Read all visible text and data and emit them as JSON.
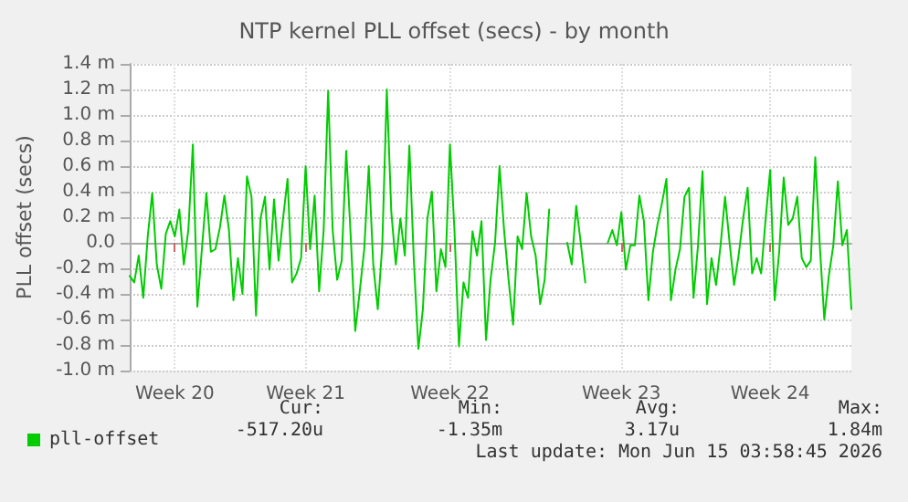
{
  "chart_data": {
    "type": "line",
    "title": "NTP kernel PLL offset (secs) - by month",
    "ylabel": "PLL offset (secs)",
    "categories": [
      null,
      null,
      null,
      null,
      null,
      null,
      null,
      null,
      null,
      null,
      "Week 20",
      null,
      null,
      null,
      null,
      null,
      null,
      null,
      null,
      null,
      null,
      null,
      null,
      null,
      null,
      null,
      null,
      null,
      null,
      null,
      null,
      null,
      null,
      null,
      null,
      null,
      null,
      null,
      null,
      "Week 21",
      null,
      null,
      null,
      null,
      null,
      null,
      null,
      null,
      null,
      null,
      null,
      null,
      null,
      null,
      null,
      null,
      null,
      null,
      null,
      null,
      null,
      null,
      null,
      null,
      null,
      null,
      null,
      null,
      null,
      null,
      null,
      "Week 22",
      null,
      null,
      null,
      null,
      null,
      null,
      null,
      null,
      null,
      null,
      null,
      null,
      null,
      null,
      null,
      null,
      null,
      null,
      null,
      null,
      null,
      null,
      null,
      null,
      null,
      null,
      null,
      null,
      null,
      null,
      null,
      null,
      null,
      null,
      null,
      null,
      null,
      "Week 23",
      null,
      null,
      null,
      null,
      null,
      null,
      null,
      null,
      null,
      null,
      null,
      null,
      null,
      null,
      null,
      null,
      null,
      null,
      null,
      null,
      null,
      null,
      null,
      null,
      null,
      null,
      null,
      null,
      null,
      null,
      null,
      null,
      "Week 24",
      null,
      null,
      null,
      null,
      null,
      null,
      null,
      null,
      null,
      null,
      null,
      null,
      null,
      null,
      null,
      null,
      null,
      null
    ],
    "series": [
      {
        "name": "pll-offset",
        "color": "#00cc00",
        "values": [
          -0.26,
          -0.31,
          -0.1,
          -0.43,
          0.05,
          0.39,
          -0.17,
          -0.36,
          0.07,
          0.17,
          0.05,
          0.26,
          -0.17,
          0.1,
          0.77,
          -0.5,
          -0.05,
          0.39,
          -0.07,
          -0.05,
          0.12,
          0.37,
          0.1,
          -0.45,
          -0.12,
          -0.4,
          0.52,
          0.36,
          -0.57,
          0.19,
          0.36,
          -0.21,
          0.34,
          -0.14,
          0.19,
          0.5,
          -0.31,
          -0.24,
          -0.12,
          0.6,
          -0.05,
          0.37,
          -0.38,
          0.1,
          1.19,
          0.1,
          -0.29,
          -0.14,
          0.72,
          0.05,
          -0.69,
          -0.38,
          -0.05,
          0.6,
          -0.17,
          -0.52,
          -0.02,
          1.2,
          0.24,
          -0.17,
          0.19,
          -0.1,
          0.76,
          -0.14,
          -0.83,
          -0.52,
          0.19,
          0.4,
          -0.38,
          -0.05,
          -0.19,
          0.77,
          0.1,
          -0.81,
          -0.31,
          -0.43,
          0.09,
          -0.1,
          0.17,
          -0.76,
          -0.29,
          0,
          0.6,
          0.1,
          -0.29,
          -0.64,
          0.05,
          -0.05,
          0.39,
          0.05,
          -0.1,
          -0.48,
          -0.29,
          0.26,
          null,
          null,
          null,
          0,
          -0.17,
          0.29,
          0,
          -0.31,
          null,
          null,
          null,
          null,
          0,
          0.1,
          -0.02,
          0.24,
          -0.21,
          -0.02,
          -0.02,
          0.37,
          0.17,
          -0.45,
          -0.07,
          0.14,
          0.31,
          0.5,
          -0.45,
          -0.21,
          -0.05,
          0.36,
          0.43,
          -0.43,
          -0.02,
          0.56,
          -0.48,
          -0.12,
          -0.33,
          -0.02,
          0.36,
          0,
          -0.33,
          -0.1,
          0.19,
          0.43,
          -0.24,
          -0.12,
          -0.24,
          0.19,
          0.57,
          -0.45,
          -0.07,
          0.51,
          0.14,
          0.19,
          0.36,
          -0.12,
          -0.19,
          -0.14,
          0.67,
          -0.02,
          -0.6,
          -0.26,
          -0.02,
          0.48,
          -0.02,
          0.1,
          -0.52
        ]
      }
    ],
    "ylim": [
      -1.0,
      1.4
    ],
    "yticks": [
      {
        "value": -1.0,
        "label": "-1.0 m"
      },
      {
        "value": -0.8,
        "label": "-0.8 m"
      },
      {
        "value": -0.6,
        "label": "-0.6 m"
      },
      {
        "value": -0.4,
        "label": "-0.4 m"
      },
      {
        "value": -0.2,
        "label": "-0.2 m"
      },
      {
        "value": 0,
        "label": "0.0"
      },
      {
        "value": 0.2,
        "label": "0.2 m"
      },
      {
        "value": 0.4,
        "label": "0.4 m"
      },
      {
        "value": 0.6,
        "label": "0.6 m"
      },
      {
        "value": 0.8,
        "label": "0.8 m"
      },
      {
        "value": 1.0,
        "label": "1.0 m"
      },
      {
        "value": 1.2,
        "label": "1.2 m"
      },
      {
        "value": 1.4,
        "label": "1.4 m"
      }
    ],
    "grid": true,
    "legend": "bottom left",
    "marker": "none",
    "line_style": "solid",
    "annotations": [
      "Cur:",
      "Min:",
      "Avg:",
      "Max:",
      "-517.20u",
      "-1.35m",
      "3.17u",
      "1.84m",
      "Last update: Mon Jun 15 03:58:45 2026"
    ]
  }
}
